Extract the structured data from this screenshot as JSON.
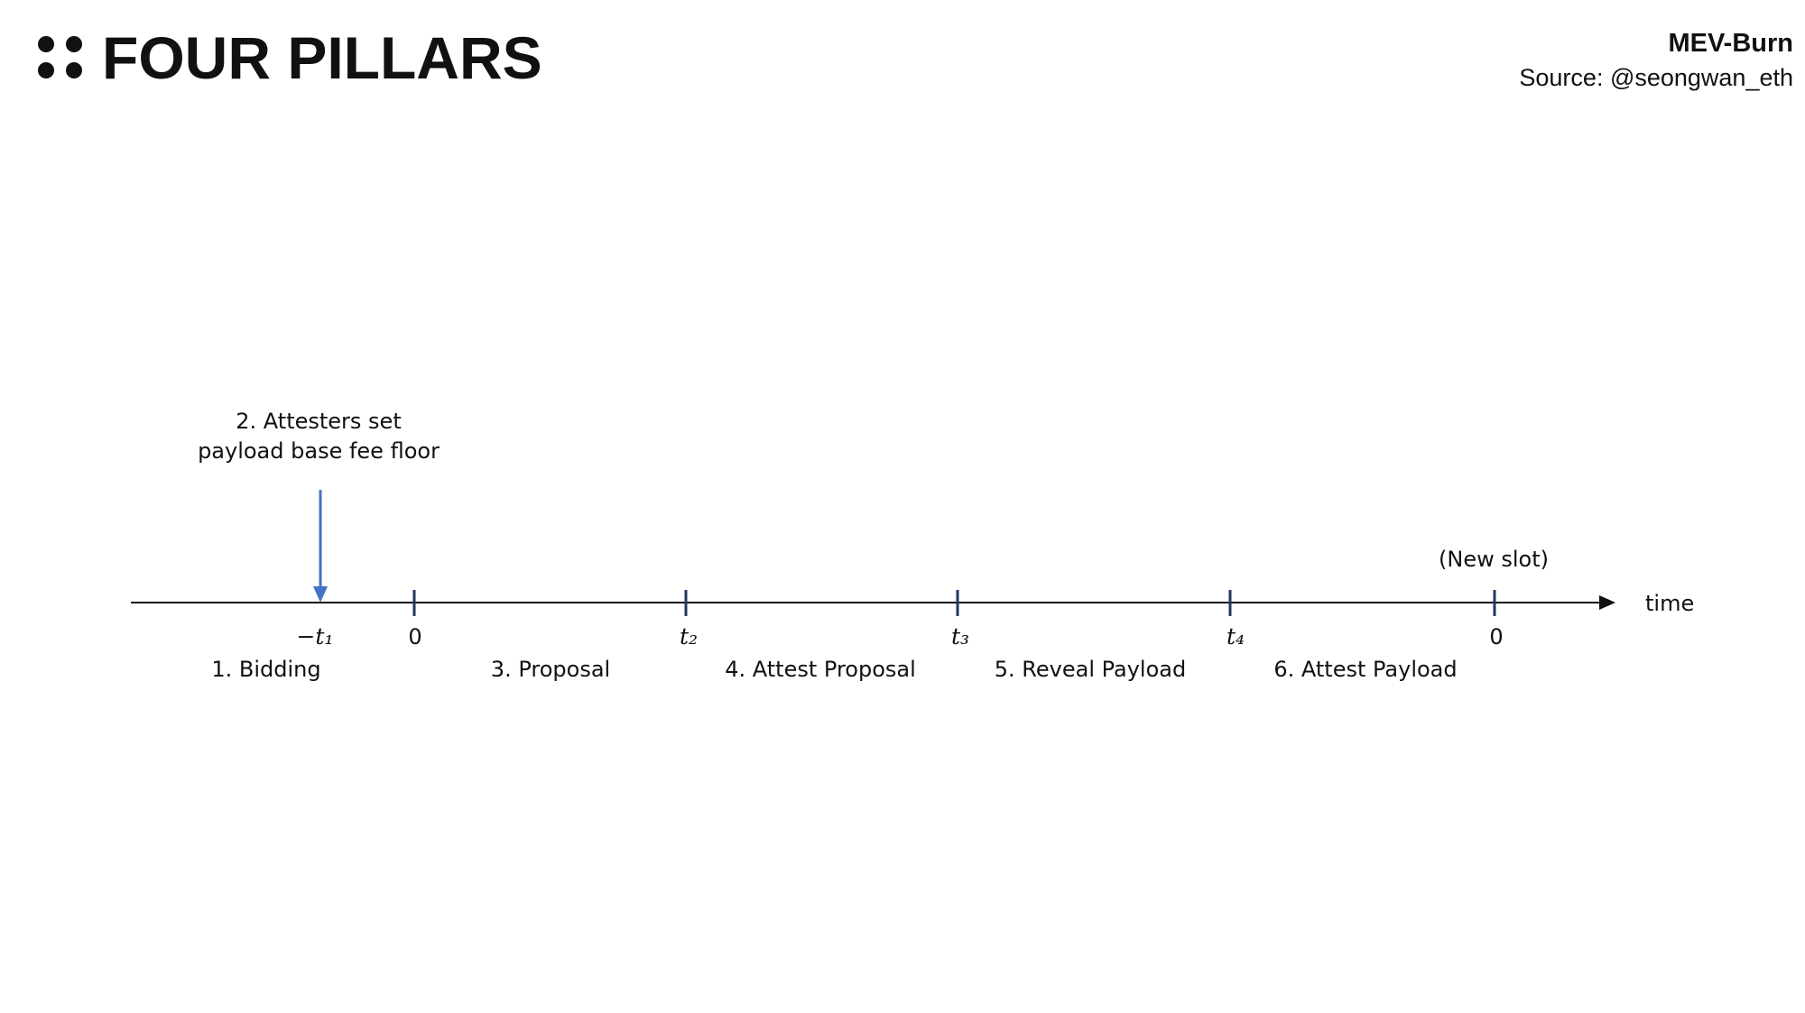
{
  "header": {
    "title": "FOUR PILLARS",
    "subtitle": "MEV-Burn",
    "source": "Source: @seongwan_eth"
  },
  "timeline": {
    "axis_label": "time",
    "tick_labels": [
      "−t₁",
      "0",
      "t₂",
      "t₃",
      "t₄",
      "0"
    ],
    "phases": [
      "1. Bidding",
      "3. Proposal",
      "4. Attest Proposal",
      "5. Reveal Payload",
      "6. Attest Payload"
    ],
    "annotation": [
      "2. Attesters set",
      "payload base fee floor"
    ],
    "end_note": "(New slot)"
  }
}
